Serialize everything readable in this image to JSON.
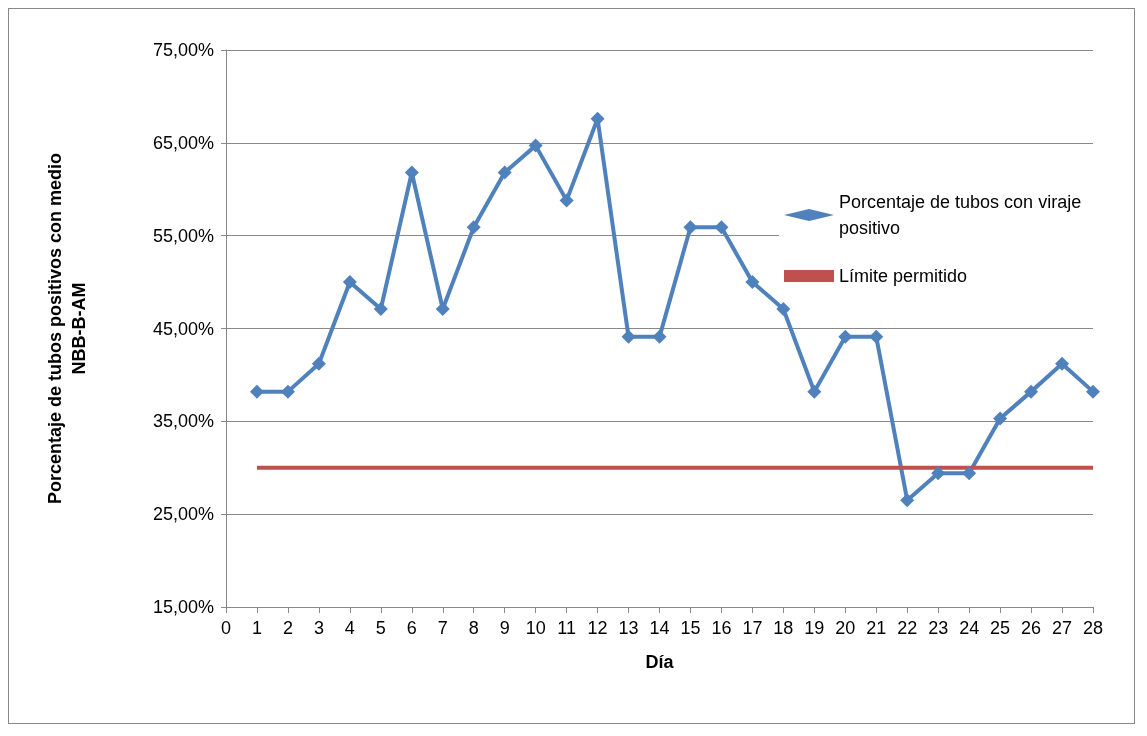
{
  "chart_data": {
    "type": "line",
    "xlabel": "Día",
    "ylabel": "Porcentaje de tubos positivos con medio\nNBB-B-AM",
    "xlim": [
      0,
      28
    ],
    "xticks": [
      0,
      1,
      2,
      3,
      4,
      5,
      6,
      7,
      8,
      9,
      10,
      11,
      12,
      13,
      14,
      15,
      16,
      17,
      18,
      19,
      20,
      21,
      22,
      23,
      24,
      25,
      26,
      27,
      28
    ],
    "ylim": [
      15,
      75
    ],
    "yticks": [
      {
        "value": 15,
        "label": "15,00%"
      },
      {
        "value": 25,
        "label": "25,00%"
      },
      {
        "value": 35,
        "label": "35,00%"
      },
      {
        "value": 45,
        "label": "45,00%"
      },
      {
        "value": 55,
        "label": "55,00%"
      },
      {
        "value": 65,
        "label": "65,00%"
      },
      {
        "value": 75,
        "label": "75,00%"
      }
    ],
    "grid": "y",
    "legend": "right",
    "line_style": "solid",
    "series": [
      {
        "name": "Porcentaje de tubos con viraje positivo",
        "color": "#4f81bd",
        "marker": "diamond",
        "x": [
          1,
          2,
          3,
          4,
          5,
          6,
          7,
          8,
          9,
          10,
          11,
          12,
          13,
          14,
          15,
          16,
          17,
          18,
          19,
          20,
          21,
          22,
          23,
          24,
          25,
          26,
          27,
          28
        ],
        "values": [
          38.2,
          38.2,
          41.2,
          50,
          47.1,
          61.8,
          47.1,
          55.9,
          61.8,
          64.7,
          58.8,
          67.6,
          44.1,
          44.1,
          55.9,
          55.9,
          50,
          47.1,
          38.2,
          44.1,
          44.1,
          26.5,
          29.4,
          29.4,
          35.3,
          38.2,
          41.2,
          38.2
        ]
      },
      {
        "name": "Límite permitido",
        "color": "#c0504d",
        "marker": "none",
        "x": [
          1,
          28
        ],
        "values": [
          30,
          30
        ]
      }
    ]
  }
}
